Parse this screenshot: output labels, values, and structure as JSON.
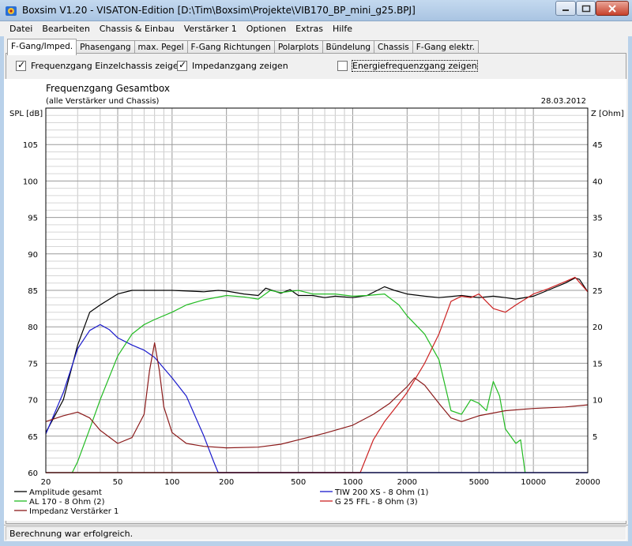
{
  "window": {
    "title": "Boxsim V1.20 - VISATON-Edition [D:\\Tim\\Boxsim\\Projekte\\VIB170_BP_mini_g25.BPJ]"
  },
  "menu": [
    "Datei",
    "Bearbeiten",
    "Chassis & Einbau",
    "Verstärker 1",
    "Optionen",
    "Extras",
    "Hilfe"
  ],
  "tabs": [
    "F-Gang/Imped.",
    "Phasengang",
    "max. Pegel",
    "F-Gang Richtungen",
    "Polarplots",
    "Bündelung",
    "Chassis",
    "F-Gang elektr."
  ],
  "active_tab": "F-Gang/Imped.",
  "options": {
    "einzel": {
      "label": "Frequenzgang Einzelchassis zeigen",
      "checked": true
    },
    "impedanz": {
      "label": "Impedanzgang zeigen",
      "checked": true
    },
    "energie": {
      "label": "Energiefrequenzgang zeigen",
      "checked": false
    }
  },
  "chart": {
    "title": "Frequenzgang Gesamtbox",
    "subtitle": "(alle Verstärker und Chassis)",
    "date": "28.03.2012",
    "y_left_label": "SPL [dB]",
    "y_right_label": "Z [Ohm]"
  },
  "status": "Berechnung war erfolgreich.",
  "chart_data": {
    "type": "line",
    "x_scale": "log",
    "xlim": [
      20,
      20000
    ],
    "ylim_left": [
      60,
      110
    ],
    "ylim_right": [
      0,
      50
    ],
    "x_ticks": [
      20,
      50,
      100,
      200,
      500,
      1000,
      2000,
      5000,
      10000,
      20000
    ],
    "y_left_ticks": [
      60,
      65,
      70,
      75,
      80,
      85,
      90,
      95,
      100,
      105
    ],
    "y_right_ticks": [
      5,
      10,
      15,
      20,
      25,
      30,
      35,
      40,
      45
    ],
    "grid": true,
    "series": [
      {
        "name": "Amplitude gesamt",
        "axis": "left",
        "color": "#000000",
        "points": [
          [
            20,
            65.5
          ],
          [
            25,
            70
          ],
          [
            30,
            77.5
          ],
          [
            35,
            82
          ],
          [
            40,
            83
          ],
          [
            50,
            84.5
          ],
          [
            60,
            85
          ],
          [
            80,
            85
          ],
          [
            100,
            85
          ],
          [
            150,
            84.8
          ],
          [
            180,
            85
          ],
          [
            200,
            84.9
          ],
          [
            250,
            84.5
          ],
          [
            300,
            84.3
          ],
          [
            330,
            85.3
          ],
          [
            400,
            84.6
          ],
          [
            450,
            85.1
          ],
          [
            500,
            84.3
          ],
          [
            600,
            84.3
          ],
          [
            700,
            84.0
          ],
          [
            800,
            84.2
          ],
          [
            1000,
            84.0
          ],
          [
            1200,
            84.3
          ],
          [
            1500,
            85.5
          ],
          [
            1700,
            85.0
          ],
          [
            2000,
            84.5
          ],
          [
            2500,
            84.2
          ],
          [
            3000,
            84.0
          ],
          [
            4000,
            84.3
          ],
          [
            5000,
            84.0
          ],
          [
            6000,
            84.2
          ],
          [
            7000,
            84.0
          ],
          [
            8000,
            83.8
          ],
          [
            10000,
            84.2
          ],
          [
            12000,
            85.0
          ],
          [
            15000,
            86.0
          ],
          [
            17000,
            86.7
          ],
          [
            18000,
            86.5
          ],
          [
            20000,
            84.8
          ]
        ]
      },
      {
        "name": "TIW 200 XS - 8 Ohm (1)",
        "axis": "left",
        "color": "#1a1acc",
        "points": [
          [
            20,
            65.3
          ],
          [
            25,
            71
          ],
          [
            30,
            77
          ],
          [
            35,
            79.5
          ],
          [
            40,
            80.3
          ],
          [
            45,
            79.6
          ],
          [
            50,
            78.5
          ],
          [
            60,
            77.5
          ],
          [
            70,
            76.8
          ],
          [
            80,
            75.8
          ],
          [
            100,
            73
          ],
          [
            120,
            70.5
          ],
          [
            150,
            65
          ],
          [
            170,
            61.5
          ],
          [
            180,
            60
          ]
        ]
      },
      {
        "name": "AL 170 - 8 Ohm (2)",
        "axis": "left",
        "color": "#22bb22",
        "points": [
          [
            28,
            60
          ],
          [
            30,
            61.5
          ],
          [
            35,
            66
          ],
          [
            40,
            70
          ],
          [
            50,
            76
          ],
          [
            60,
            79
          ],
          [
            70,
            80.3
          ],
          [
            80,
            81
          ],
          [
            100,
            82
          ],
          [
            120,
            83
          ],
          [
            150,
            83.7
          ],
          [
            200,
            84.3
          ],
          [
            250,
            84.1
          ],
          [
            300,
            83.8
          ],
          [
            350,
            85
          ],
          [
            400,
            84.7
          ],
          [
            500,
            85
          ],
          [
            600,
            84.5
          ],
          [
            800,
            84.5
          ],
          [
            1000,
            84.2
          ],
          [
            1200,
            84.3
          ],
          [
            1500,
            84.5
          ],
          [
            1800,
            83
          ],
          [
            2000,
            81.5
          ],
          [
            2500,
            79
          ],
          [
            3000,
            75.5
          ],
          [
            3500,
            68.5
          ],
          [
            4000,
            68.0
          ],
          [
            4500,
            70
          ],
          [
            5000,
            69.5
          ],
          [
            5500,
            68.5
          ],
          [
            6000,
            72.5
          ],
          [
            6500,
            70.5
          ],
          [
            7000,
            66
          ],
          [
            8000,
            64
          ],
          [
            8500,
            64.5
          ],
          [
            9000,
            60
          ]
        ]
      },
      {
        "name": "G 25 FFL - 8 Ohm (3)",
        "axis": "left",
        "color": "#cc2222",
        "points": [
          [
            1100,
            60
          ],
          [
            1300,
            64.5
          ],
          [
            1500,
            67
          ],
          [
            1800,
            69.5
          ],
          [
            2000,
            71
          ],
          [
            2500,
            75
          ],
          [
            3000,
            79
          ],
          [
            3500,
            83.5
          ],
          [
            4000,
            84.2
          ],
          [
            4500,
            84.0
          ],
          [
            5000,
            84.5
          ],
          [
            6000,
            82.5
          ],
          [
            7000,
            82.0
          ],
          [
            8000,
            83
          ],
          [
            10000,
            84.5
          ],
          [
            12000,
            85.2
          ],
          [
            15000,
            86.2
          ],
          [
            17000,
            86.8
          ],
          [
            20000,
            84.8
          ]
        ]
      },
      {
        "name": "Impedanz Verstärker 1",
        "axis": "right",
        "color": "#8b1a1a",
        "points": [
          [
            20,
            7.0
          ],
          [
            25,
            7.8
          ],
          [
            30,
            8.3
          ],
          [
            35,
            7.5
          ],
          [
            40,
            5.8
          ],
          [
            50,
            4.0
          ],
          [
            60,
            4.8
          ],
          [
            70,
            8.0
          ],
          [
            75,
            14
          ],
          [
            80,
            17.8
          ],
          [
            85,
            14
          ],
          [
            90,
            9.0
          ],
          [
            100,
            5.5
          ],
          [
            120,
            4.0
          ],
          [
            150,
            3.6
          ],
          [
            200,
            3.4
          ],
          [
            300,
            3.5
          ],
          [
            400,
            3.9
          ],
          [
            500,
            4.5
          ],
          [
            700,
            5.4
          ],
          [
            1000,
            6.5
          ],
          [
            1300,
            8.0
          ],
          [
            1600,
            9.5
          ],
          [
            2000,
            11.8
          ],
          [
            2200,
            13.0
          ],
          [
            2500,
            12.0
          ],
          [
            3000,
            9.5
          ],
          [
            3500,
            7.5
          ],
          [
            4000,
            7.0
          ],
          [
            5000,
            7.8
          ],
          [
            7000,
            8.5
          ],
          [
            10000,
            8.8
          ],
          [
            15000,
            9.0
          ],
          [
            20000,
            9.3
          ]
        ]
      }
    ],
    "legend": [
      "Amplitude gesamt",
      "TIW 200 XS - 8 Ohm (1)",
      "AL 170 - 8 Ohm (2)",
      "G 25 FFL - 8 Ohm (3)",
      "Impedanz Verstärker 1"
    ]
  }
}
